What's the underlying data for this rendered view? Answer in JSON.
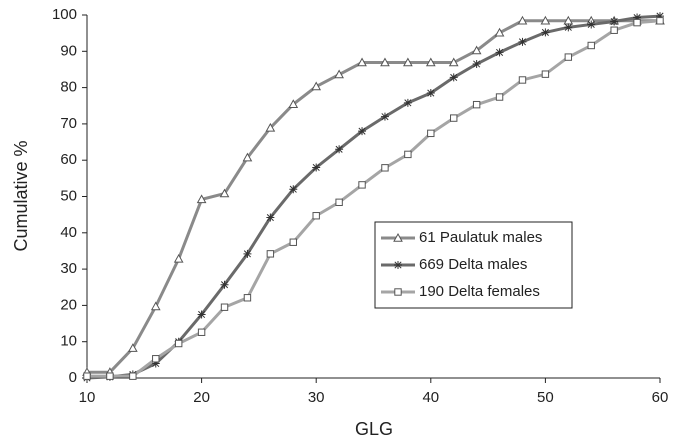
{
  "chart_data": {
    "type": "line",
    "x_label": "GLG",
    "y_label": "Cumulative %",
    "x": [
      10,
      12,
      14,
      16,
      18,
      20,
      22,
      24,
      26,
      28,
      30,
      32,
      34,
      36,
      38,
      40,
      42,
      44,
      46,
      48,
      50,
      52,
      54,
      56,
      58,
      60
    ],
    "series": [
      {
        "name": "61 Paulatuk males",
        "color": "#8a8a8a",
        "marker": "triangle",
        "values": [
          1.6,
          1.6,
          8.2,
          19.7,
          32.8,
          49.2,
          50.8,
          60.7,
          68.9,
          75.4,
          80.3,
          83.6,
          86.9,
          86.9,
          86.9,
          86.9,
          86.9,
          90.2,
          95.1,
          98.4,
          98.4,
          98.4,
          98.4,
          98.4,
          98.4,
          98.4
        ]
      },
      {
        "name": "669 Delta males",
        "color": "#6a6a6a",
        "marker": "asterisk",
        "values": [
          0,
          0.3,
          1.0,
          4.0,
          10.0,
          17.5,
          25.7,
          34.2,
          44.2,
          52,
          58,
          63,
          68,
          72,
          75.8,
          78.5,
          82.8,
          86.5,
          89.7,
          92.6,
          95.2,
          96.6,
          97.4,
          98.2,
          99.3,
          99.7
        ]
      },
      {
        "name": "190 Delta females",
        "color": "#a5a5a5",
        "marker": "square",
        "values": [
          0.5,
          0.5,
          0.5,
          5.3,
          9.5,
          12.6,
          19.5,
          22.1,
          34.2,
          37.4,
          44.7,
          48.4,
          53.2,
          57.9,
          61.6,
          67.4,
          71.6,
          75.3,
          77.4,
          82.1,
          83.7,
          88.4,
          91.6,
          95.8,
          97.9,
          98.4
        ]
      }
    ],
    "xlim": [
      10,
      60
    ],
    "xticks": [
      10,
      20,
      30,
      40,
      50,
      60
    ],
    "ylim": [
      0,
      100
    ],
    "yticks": [
      0,
      10,
      20,
      30,
      40,
      50,
      60,
      70,
      80,
      90,
      100
    ],
    "grid": false,
    "legend": "lower right"
  }
}
